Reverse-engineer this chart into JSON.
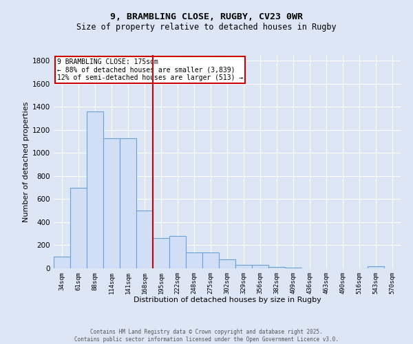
{
  "title1": "9, BRAMBLING CLOSE, RUGBY, CV23 0WR",
  "title2": "Size of property relative to detached houses in Rugby",
  "xlabel": "Distribution of detached houses by size in Rugby",
  "ylabel": "Number of detached properties",
  "bar_color": "#d0dff5",
  "bar_edge_color": "#6a9fd8",
  "background_color": "#dce6f5",
  "grid_color": "#ffffff",
  "categories": [
    "34sqm",
    "61sqm",
    "88sqm",
    "114sqm",
    "141sqm",
    "168sqm",
    "195sqm",
    "222sqm",
    "248sqm",
    "275sqm",
    "302sqm",
    "329sqm",
    "356sqm",
    "382sqm",
    "409sqm",
    "436sqm",
    "463sqm",
    "490sqm",
    "516sqm",
    "543sqm",
    "570sqm"
  ],
  "values": [
    100,
    700,
    1360,
    1130,
    1130,
    500,
    260,
    280,
    140,
    140,
    75,
    30,
    30,
    10,
    5,
    0,
    0,
    0,
    0,
    15,
    0
  ],
  "vline_color": "#cc0000",
  "annotation_text": "9 BRAMBLING CLOSE: 175sqm\n← 88% of detached houses are smaller (3,839)\n12% of semi-detached houses are larger (513) →",
  "annotation_box_color": "#ffffff",
  "annotation_box_edge": "#cc0000",
  "ylim": [
    0,
    1850
  ],
  "yticks": [
    0,
    200,
    400,
    600,
    800,
    1000,
    1200,
    1400,
    1600,
    1800
  ],
  "footer1": "Contains HM Land Registry data © Crown copyright and database right 2025.",
  "footer2": "Contains public sector information licensed under the Open Government Licence v3.0."
}
